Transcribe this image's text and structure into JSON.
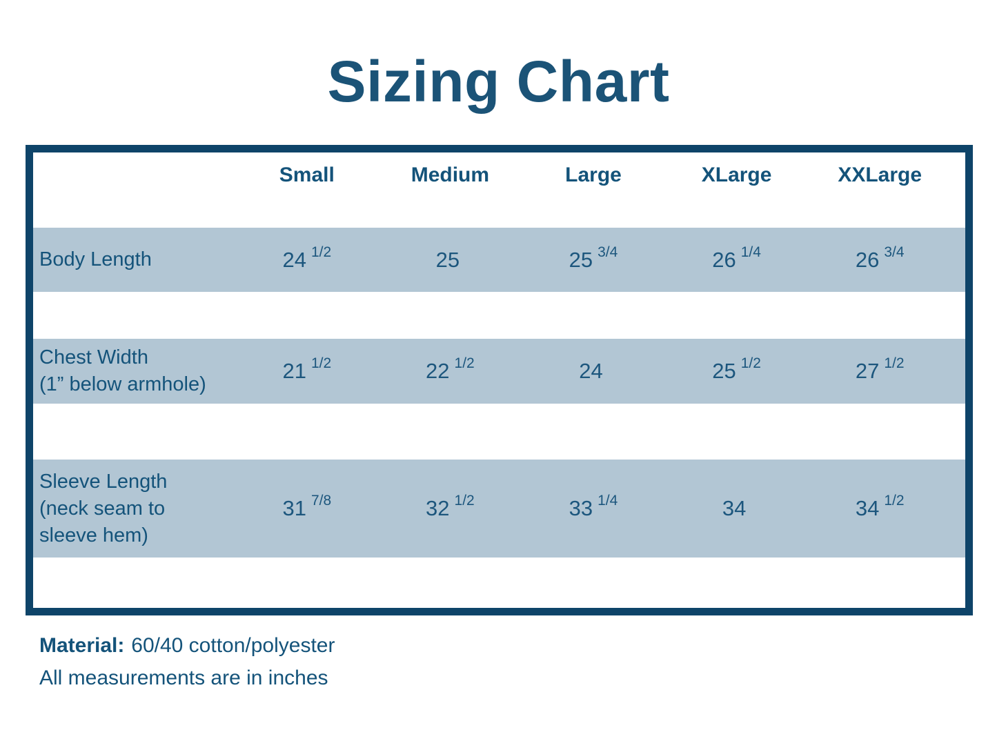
{
  "title": "Sizing Chart",
  "table": {
    "columns": [
      "Small",
      "Medium",
      "Large",
      "XLarge",
      "XXLarge"
    ],
    "rows": [
      {
        "label": "Body Length",
        "values": [
          {
            "base": "24",
            "frac": "1/2"
          },
          {
            "base": "25",
            "frac": ""
          },
          {
            "base": "25",
            "frac": "3/4"
          },
          {
            "base": "26",
            "frac": "1/4"
          },
          {
            "base": "26",
            "frac": "3/4"
          }
        ]
      },
      {
        "label": "Chest Width\n(1” below armhole)",
        "values": [
          {
            "base": "21",
            "frac": "1/2"
          },
          {
            "base": "22",
            "frac": "1/2"
          },
          {
            "base": "24",
            "frac": ""
          },
          {
            "base": "25",
            "frac": "1/2"
          },
          {
            "base": "27",
            "frac": "1/2"
          }
        ]
      },
      {
        "label": "Sleeve Length\n(neck seam to\nsleeve hem)",
        "values": [
          {
            "base": "31",
            "frac": "7/8"
          },
          {
            "base": "32",
            "frac": "1/2"
          },
          {
            "base": "33",
            "frac": "1/4"
          },
          {
            "base": "34",
            "frac": ""
          },
          {
            "base": "34",
            "frac": "1/2"
          }
        ]
      }
    ]
  },
  "footer": {
    "material_label": "Material:",
    "material_value": "60/40 cotton/polyester",
    "note": "All measurements are in inches"
  },
  "colors": {
    "border_navy": "#0e4469",
    "text_navy": "#14537a",
    "title_navy": "#1b5377",
    "row_band_blue": "#b2c6d4"
  }
}
